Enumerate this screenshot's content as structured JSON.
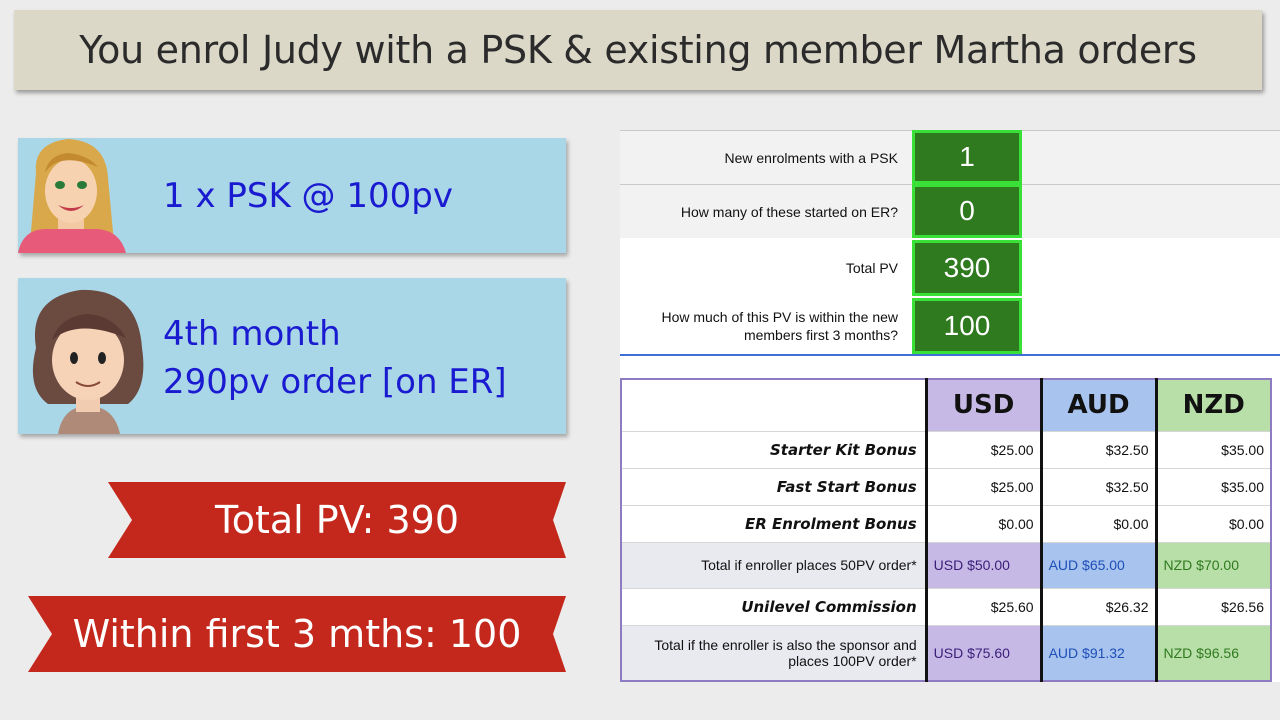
{
  "title": "You enrol Judy with a PSK & existing member Martha orders",
  "cards": [
    {
      "lines": [
        "1 x PSK @ 100pv"
      ]
    },
    {
      "lines": [
        "4th month",
        "290pv order [on ER]"
      ]
    }
  ],
  "banners": {
    "total": "Total PV: 390",
    "within": "Within first 3 mths: 100"
  },
  "inputs": [
    {
      "label": "New enrolments with a PSK",
      "value": "1"
    },
    {
      "label": "How many of these started on ER?",
      "value": "0"
    },
    {
      "label": "Total PV",
      "value": "390"
    },
    {
      "label": "How much of this PV is within the new members first 3 months?",
      "value": "100"
    }
  ],
  "table": {
    "currencies": [
      "USD",
      "AUD",
      "NZD"
    ],
    "rows": [
      {
        "label": "Starter Kit Bonus",
        "values": [
          "$25.00",
          "$32.50",
          "$35.00"
        ]
      },
      {
        "label": "Fast Start Bonus",
        "values": [
          "$25.00",
          "$32.50",
          "$35.00"
        ]
      },
      {
        "label": "ER Enrolment Bonus",
        "values": [
          "$0.00",
          "$0.00",
          "$0.00"
        ]
      },
      {
        "label": "Total if enroller places 50PV order*",
        "values": [
          "USD $50.00",
          "AUD $65.00",
          "NZD $70.00"
        ]
      },
      {
        "label": "Unilevel Commission",
        "values": [
          "$25.60",
          "$26.32",
          "$26.56"
        ]
      },
      {
        "label": "Total if the enroller is also the sponsor and places 100PV order*",
        "values": [
          "USD $75.60",
          "AUD $91.32",
          "NZD $96.56"
        ]
      }
    ]
  },
  "colors": {
    "accent_green": "#2f7a1f",
    "banner_red": "#c4281c",
    "card_blue": "#a9d7e8",
    "text_blue": "#1a1ad0"
  }
}
